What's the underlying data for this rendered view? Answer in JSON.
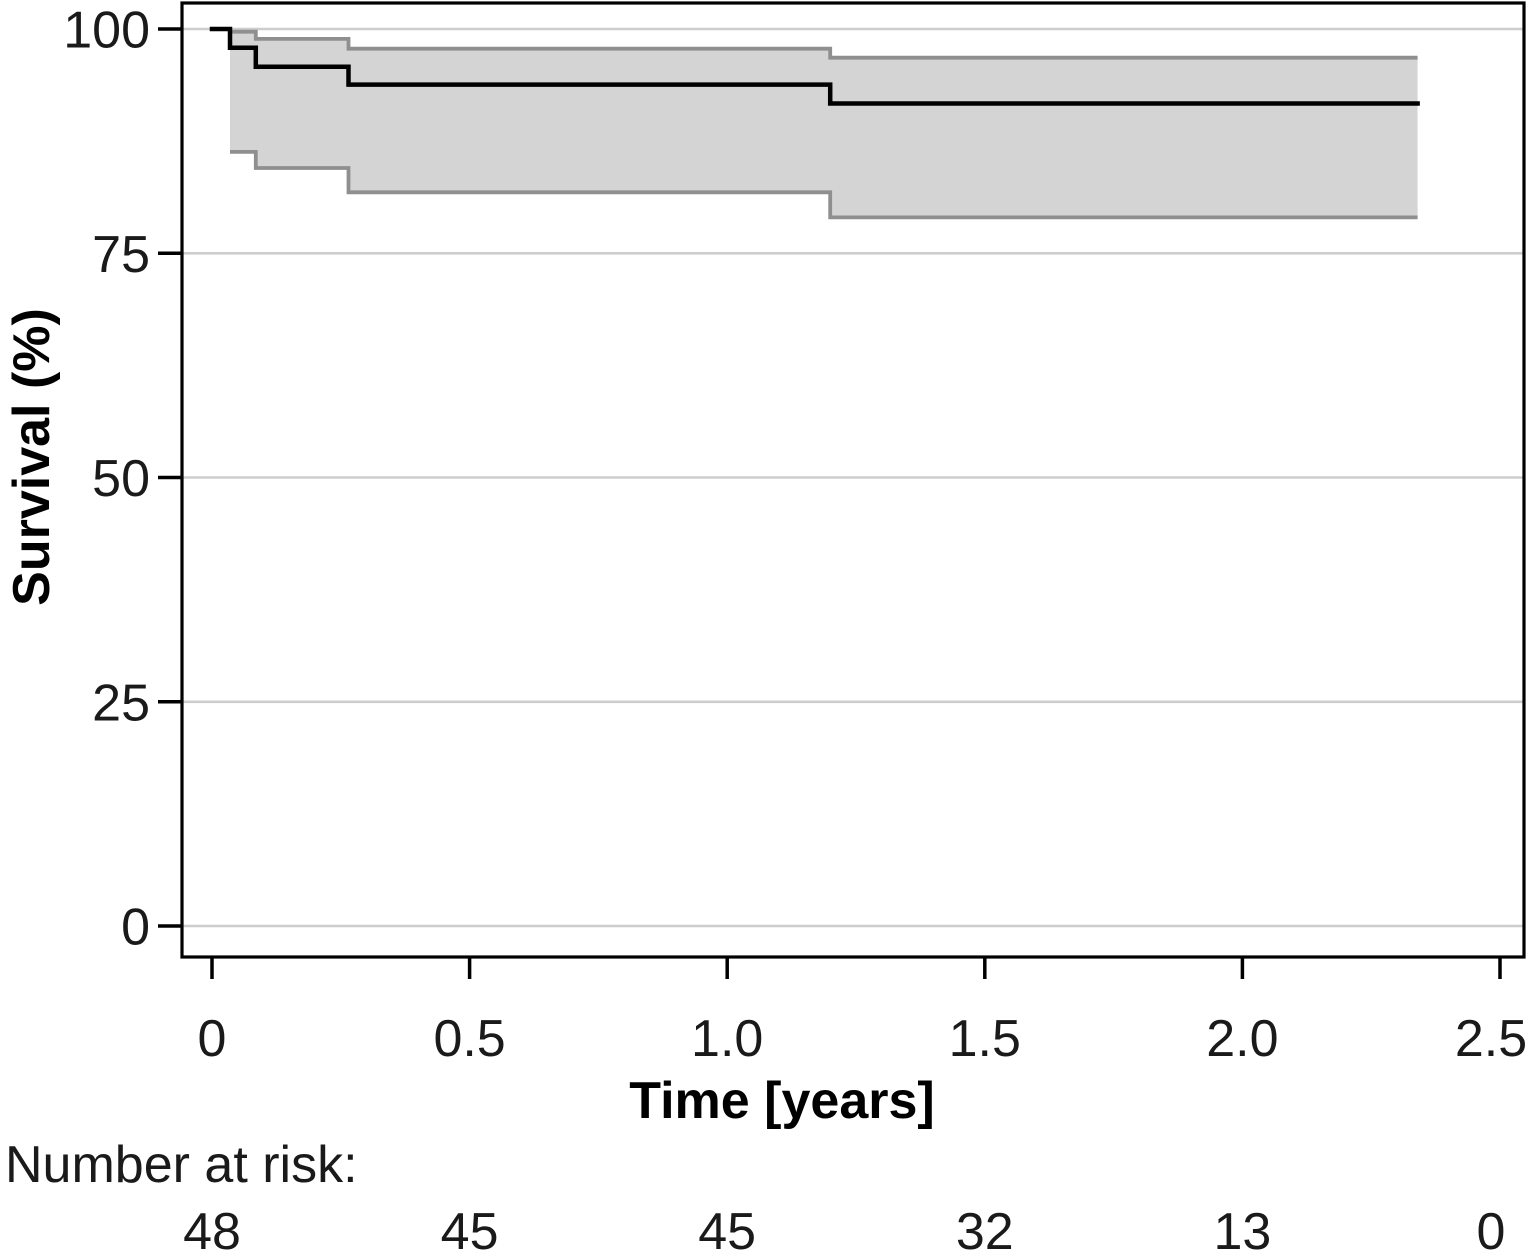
{
  "figure": {
    "background": "#ffffff"
  },
  "chart_data": {
    "type": "line",
    "subtype": "kaplan-meier-step-curve-with-ci-band",
    "title": "",
    "xlabel": "Time [years]",
    "ylabel": "Survival (%)",
    "xlim": [
      0,
      2.5
    ],
    "ylim": [
      0,
      100
    ],
    "x_ticks": [
      "0",
      "0.5",
      "1.0",
      "1.5",
      "2.0",
      "2.5"
    ],
    "x_tick_values": [
      0,
      0.5,
      1.0,
      1.5,
      2.0,
      2.5
    ],
    "y_ticks": [
      "100",
      "75",
      "50",
      "25",
      "0"
    ],
    "y_tick_values": [
      100,
      75,
      50,
      25,
      0
    ],
    "grid": "horizontal-only",
    "legend": "none",
    "colors": {
      "curve": "#000000",
      "ci_border": "#8f8f8f",
      "ci_fill": "#d4d4d4",
      "gridline": "#cdcdcd",
      "frame": "#000000"
    },
    "series": [
      {
        "name": "survival-estimate",
        "role": "estimate",
        "x": [
          0,
          0.035,
          0.085,
          0.265,
          1.2,
          2.34
        ],
        "y": [
          100,
          97.9,
          95.8,
          93.8,
          91.7,
          91.7
        ]
      },
      {
        "name": "ci-upper",
        "role": "ci-upper",
        "x": [
          0.035,
          0.085,
          0.265,
          1.2,
          2.34
        ],
        "y": [
          99.7,
          98.9,
          97.8,
          96.8,
          96.8
        ]
      },
      {
        "name": "ci-lower",
        "role": "ci-lower",
        "x": [
          0.035,
          0.085,
          0.265,
          1.2,
          2.34
        ],
        "y": [
          86.3,
          84.5,
          81.8,
          79.0,
          79.0
        ]
      }
    ],
    "number_at_risk": {
      "label": "Number at risk:",
      "times": [
        0,
        0.5,
        1.0,
        1.5,
        2.0,
        2.5
      ],
      "values": [
        "48",
        "45",
        "45",
        "32",
        "13",
        "0"
      ]
    }
  }
}
